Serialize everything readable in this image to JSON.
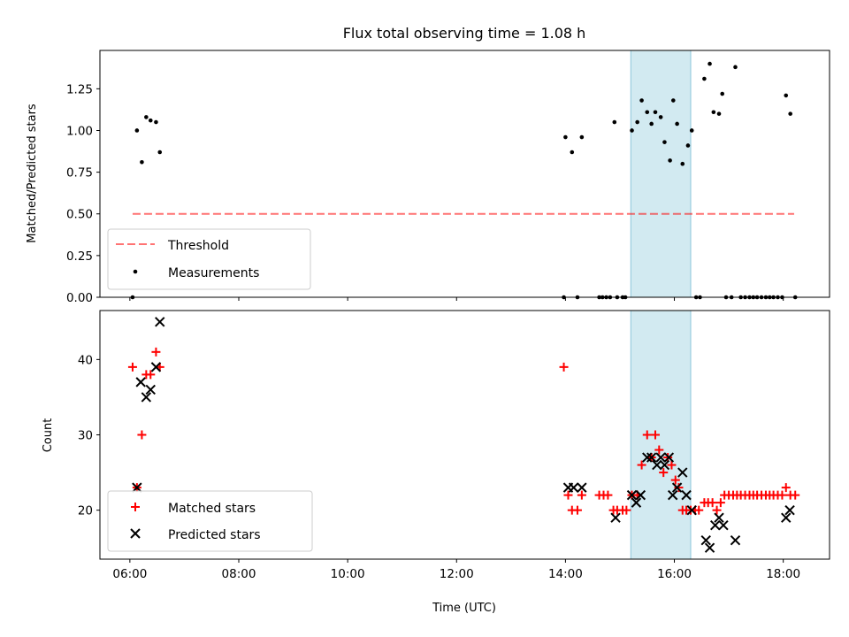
{
  "chart_data": [
    {
      "type": "scatter",
      "title": "Flux total observing time = 1.08 h",
      "ylabel": "Matched/Predicted stars",
      "xlim": [
        5.45,
        18.85
      ],
      "ylim": [
        0,
        1.48
      ],
      "y_ticks": [
        {
          "v": 0,
          "label": "0.00"
        },
        {
          "v": 0.25,
          "label": "0.25"
        },
        {
          "v": 0.5,
          "label": "0.50"
        },
        {
          "v": 0.75,
          "label": "0.75"
        },
        {
          "v": 1.0,
          "label": "1.00"
        },
        {
          "v": 1.25,
          "label": "1.25"
        }
      ],
      "shaded_span": {
        "x0": 15.2,
        "x1": 16.3,
        "color": "#add8e6"
      },
      "threshold": {
        "name": "Threshold",
        "y": 0.5,
        "x0": 6.05,
        "x1": 18.2,
        "color": "#ff0000"
      },
      "legend": {
        "placement": "lower-left",
        "entries": [
          "Threshold",
          "Measurements"
        ]
      },
      "series": [
        {
          "name": "Measurements",
          "color": "#000000",
          "points": [
            [
              6.05,
              0
            ],
            [
              6.13,
              1.0
            ],
            [
              6.22,
              0.81
            ],
            [
              6.3,
              1.08
            ],
            [
              6.38,
              1.06
            ],
            [
              6.48,
              1.05
            ],
            [
              6.55,
              0.87
            ],
            [
              14.0,
              0.96
            ],
            [
              13.97,
              0
            ],
            [
              14.12,
              0.87
            ],
            [
              14.22,
              0
            ],
            [
              14.3,
              0.96
            ],
            [
              14.62,
              0
            ],
            [
              14.68,
              0
            ],
            [
              14.75,
              0
            ],
            [
              14.82,
              0
            ],
            [
              14.9,
              1.05
            ],
            [
              14.95,
              0
            ],
            [
              15.05,
              0
            ],
            [
              15.1,
              0
            ],
            [
              15.22,
              1.0
            ],
            [
              15.32,
              1.05
            ],
            [
              15.4,
              1.18
            ],
            [
              15.5,
              1.11
            ],
            [
              15.58,
              1.04
            ],
            [
              15.65,
              1.11
            ],
            [
              15.75,
              1.08
            ],
            [
              15.82,
              0.93
            ],
            [
              15.92,
              0.82
            ],
            [
              15.98,
              1.18
            ],
            [
              16.05,
              1.04
            ],
            [
              16.15,
              0.8
            ],
            [
              16.25,
              0.91
            ],
            [
              16.32,
              1.0
            ],
            [
              16.4,
              0
            ],
            [
              16.47,
              0
            ],
            [
              16.55,
              1.31
            ],
            [
              16.65,
              1.4
            ],
            [
              16.72,
              1.11
            ],
            [
              16.82,
              1.1
            ],
            [
              16.88,
              1.22
            ],
            [
              16.95,
              0
            ],
            [
              17.05,
              0
            ],
            [
              17.12,
              1.38
            ],
            [
              17.22,
              0
            ],
            [
              17.3,
              0
            ],
            [
              17.38,
              0
            ],
            [
              17.45,
              0
            ],
            [
              17.52,
              0
            ],
            [
              17.6,
              0
            ],
            [
              17.68,
              0
            ],
            [
              17.75,
              0
            ],
            [
              17.82,
              0
            ],
            [
              17.9,
              0
            ],
            [
              17.98,
              0
            ],
            [
              18.05,
              1.21
            ],
            [
              18.13,
              1.1
            ],
            [
              18.22,
              0
            ]
          ]
        }
      ]
    },
    {
      "type": "scatter",
      "xlabel": "Time (UTC)",
      "ylabel": "Count",
      "xlim": [
        5.45,
        18.85
      ],
      "ylim": [
        13.5,
        46.5
      ],
      "x_ticks": [
        {
          "v": 6,
          "label": "06:00"
        },
        {
          "v": 8,
          "label": "08:00"
        },
        {
          "v": 10,
          "label": "10:00"
        },
        {
          "v": 12,
          "label": "12:00"
        },
        {
          "v": 14,
          "label": "14:00"
        },
        {
          "v": 16,
          "label": "16:00"
        },
        {
          "v": 18,
          "label": "18:00"
        }
      ],
      "y_ticks": [
        {
          "v": 20,
          "label": "20"
        },
        {
          "v": 30,
          "label": "30"
        },
        {
          "v": 40,
          "label": "40"
        }
      ],
      "shaded_span": {
        "x0": 15.2,
        "x1": 16.3,
        "color": "#add8e6"
      },
      "legend": {
        "placement": "lower-left",
        "entries": [
          "Matched stars",
          "Predicted stars"
        ]
      },
      "series": [
        {
          "name": "Matched stars",
          "marker": "plus",
          "color": "#ff0000",
          "points": [
            [
              6.05,
              39
            ],
            [
              6.13,
              23
            ],
            [
              6.22,
              30
            ],
            [
              6.3,
              38
            ],
            [
              6.38,
              38
            ],
            [
              6.48,
              41
            ],
            [
              6.55,
              39
            ],
            [
              13.97,
              39
            ],
            [
              14.05,
              22
            ],
            [
              14.12,
              20
            ],
            [
              14.22,
              20
            ],
            [
              14.3,
              22
            ],
            [
              14.62,
              22
            ],
            [
              14.7,
              22
            ],
            [
              14.78,
              22
            ],
            [
              14.88,
              20
            ],
            [
              14.95,
              20
            ],
            [
              15.05,
              20
            ],
            [
              15.12,
              20
            ],
            [
              15.22,
              22
            ],
            [
              15.32,
              22
            ],
            [
              15.4,
              26
            ],
            [
              15.5,
              30
            ],
            [
              15.58,
              27
            ],
            [
              15.65,
              30
            ],
            [
              15.72,
              28
            ],
            [
              15.8,
              25
            ],
            [
              15.88,
              27
            ],
            [
              15.95,
              26
            ],
            [
              16.02,
              24
            ],
            [
              16.08,
              23
            ],
            [
              16.15,
              20
            ],
            [
              16.22,
              20
            ],
            [
              16.3,
              20
            ],
            [
              16.38,
              20
            ],
            [
              16.45,
              20
            ],
            [
              16.55,
              21
            ],
            [
              16.62,
              21
            ],
            [
              16.7,
              21
            ],
            [
              16.78,
              20
            ],
            [
              16.85,
              21
            ],
            [
              16.92,
              22
            ],
            [
              17.0,
              22
            ],
            [
              17.08,
              22
            ],
            [
              17.15,
              22
            ],
            [
              17.22,
              22
            ],
            [
              17.3,
              22
            ],
            [
              17.38,
              22
            ],
            [
              17.45,
              22
            ],
            [
              17.52,
              22
            ],
            [
              17.6,
              22
            ],
            [
              17.68,
              22
            ],
            [
              17.75,
              22
            ],
            [
              17.82,
              22
            ],
            [
              17.9,
              22
            ],
            [
              17.98,
              22
            ],
            [
              18.05,
              23
            ],
            [
              18.13,
              22
            ],
            [
              18.22,
              22
            ]
          ]
        },
        {
          "name": "Predicted stars",
          "marker": "x",
          "color": "#000000",
          "points": [
            [
              6.13,
              23
            ],
            [
              6.2,
              37
            ],
            [
              6.3,
              35
            ],
            [
              6.38,
              36
            ],
            [
              6.48,
              39
            ],
            [
              6.55,
              45
            ],
            [
              14.05,
              23
            ],
            [
              14.15,
              23
            ],
            [
              14.3,
              23
            ],
            [
              14.92,
              19
            ],
            [
              15.22,
              22
            ],
            [
              15.3,
              21
            ],
            [
              15.38,
              22
            ],
            [
              15.5,
              27
            ],
            [
              15.58,
              27
            ],
            [
              15.68,
              26
            ],
            [
              15.75,
              27
            ],
            [
              15.82,
              26
            ],
            [
              15.9,
              27
            ],
            [
              15.97,
              22
            ],
            [
              16.05,
              23
            ],
            [
              16.15,
              25
            ],
            [
              16.22,
              22
            ],
            [
              16.32,
              20
            ],
            [
              16.58,
              16
            ],
            [
              16.65,
              15
            ],
            [
              16.75,
              18
            ],
            [
              16.82,
              19
            ],
            [
              16.9,
              18
            ],
            [
              17.12,
              16
            ],
            [
              18.05,
              19
            ],
            [
              18.12,
              20
            ]
          ]
        }
      ]
    }
  ]
}
